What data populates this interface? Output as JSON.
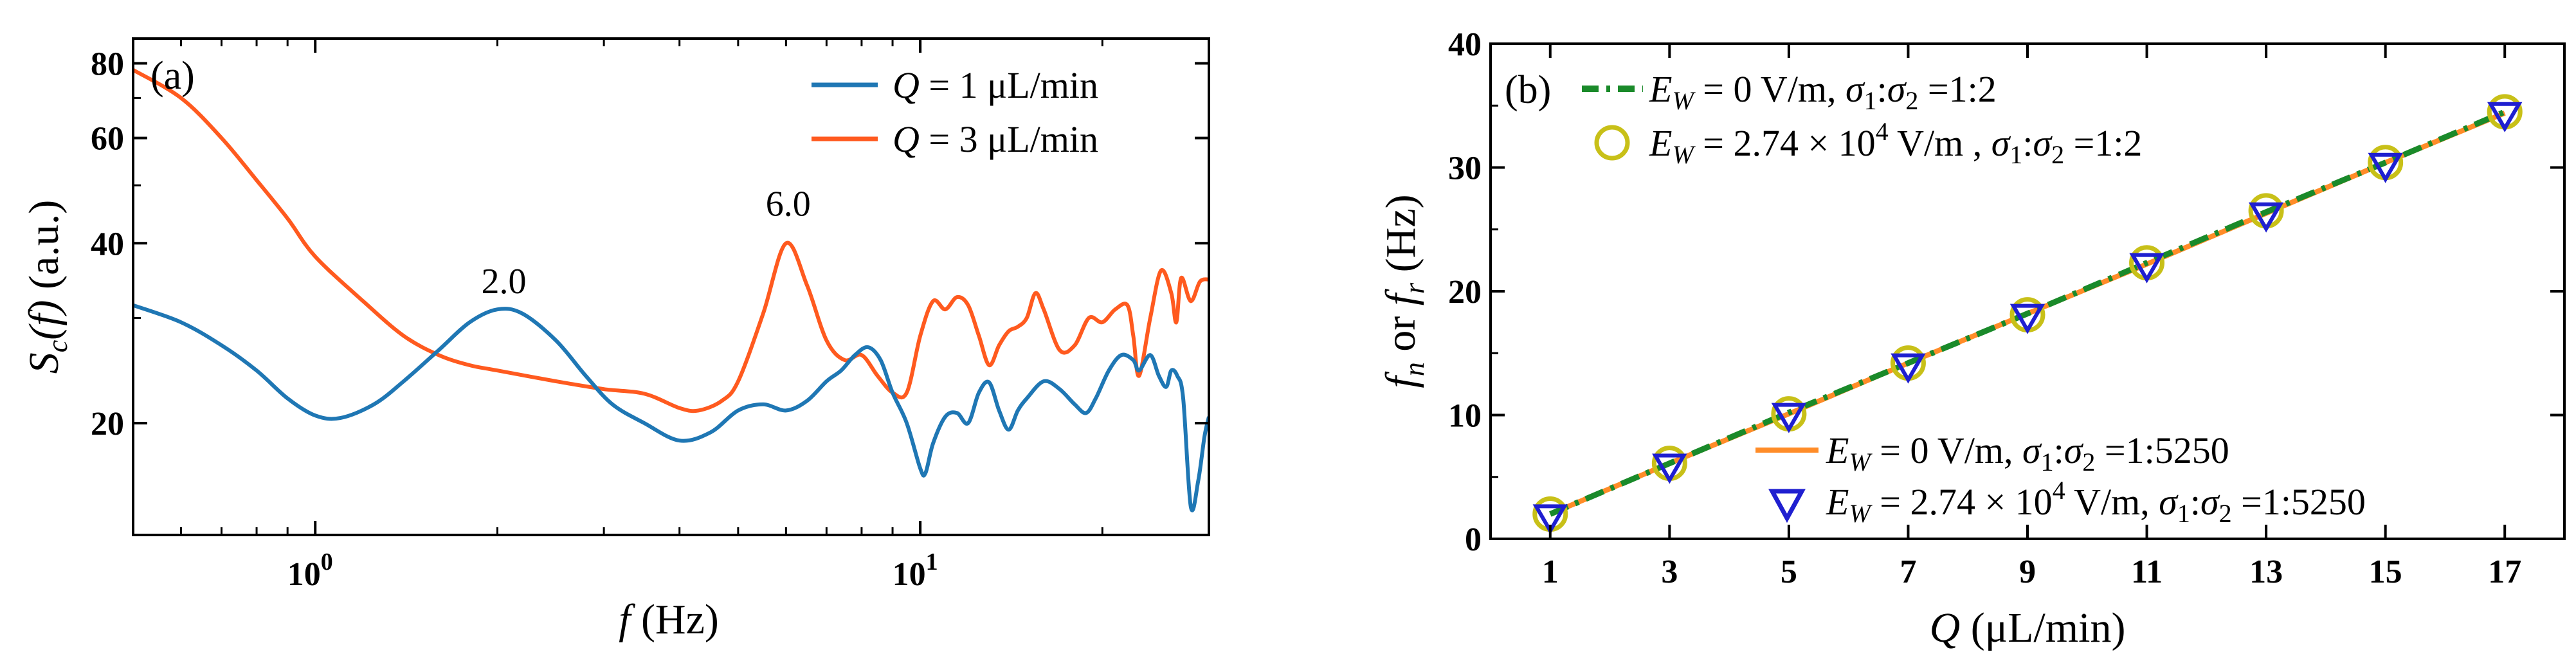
{
  "colors": {
    "blue": "#1f77b4",
    "orange": "#ff5a1f",
    "green": "#1a8a2a",
    "lineOrange": "#ff8c28",
    "olive": "#c8c018",
    "triangle": "#1f1fd0"
  },
  "chart_data": [
    {
      "id": "a",
      "type": "line",
      "panel_label": "(a)",
      "xscale": "log",
      "yscale": "log",
      "xlim": [
        0.5,
        30
      ],
      "ylim": [
        13,
        88
      ],
      "xlabel": {
        "italic": "f",
        "rest": "(Hz)"
      },
      "ylabel": {
        "italic": "S",
        "sub": "c",
        "arg": "(f)",
        "rest": "(a.u.)"
      },
      "xticks": [
        {
          "value": 1,
          "base": "10",
          "exp": "0"
        },
        {
          "value": 10,
          "base": "10",
          "exp": "1"
        }
      ],
      "yticks": [
        {
          "value": 20,
          "label": "20"
        },
        {
          "value": 40,
          "label": "40"
        },
        {
          "value": 60,
          "label": "60"
        },
        {
          "value": 80,
          "label": "80"
        }
      ],
      "legend_position": "top-right",
      "series": [
        {
          "name": "Q = 1 μL/min",
          "legend_var": "Q",
          "legend_rest": " = 1 μL/min",
          "color": "blue",
          "x": [
            0.5,
            0.6,
            0.7,
            0.8,
            0.9,
            1.0,
            1.1,
            1.25,
            1.4,
            1.6,
            1.8,
            2.0,
            2.2,
            2.5,
            2.8,
            3.1,
            3.5,
            4.0,
            4.5,
            5.0,
            5.5,
            6.0,
            6.5,
            7.0,
            7.4,
            7.8,
            8.2,
            8.6,
            9.0,
            9.5,
            10.0,
            10.2,
            10.5,
            11.0,
            11.5,
            12.0,
            12.5,
            13.0,
            13.5,
            14.0,
            14.5,
            15.0,
            16.0,
            17.0,
            18.0,
            18.8,
            19.5,
            20.5,
            21.5,
            22.5,
            23.0,
            24.0,
            24.8,
            25.5,
            26.0,
            26.6,
            27.2,
            28.0,
            28.8,
            29.5,
            30.0
          ],
          "y": [
            31.5,
            29.5,
            27.0,
            24.5,
            22.0,
            20.6,
            20.4,
            21.5,
            23.5,
            26.5,
            29.5,
            31.0,
            30.5,
            27.5,
            24.0,
            21.5,
            20.0,
            18.7,
            19.3,
            21.0,
            21.5,
            21.0,
            21.8,
            23.5,
            24.5,
            26.0,
            26.8,
            25.5,
            22.5,
            20.0,
            16.8,
            16.5,
            18.5,
            20.5,
            20.8,
            20.0,
            22.5,
            23.4,
            21.0,
            19.5,
            21.0,
            22.0,
            23.5,
            22.8,
            21.5,
            20.8,
            22.0,
            24.5,
            26.0,
            25.5,
            24.5,
            26.0,
            24.0,
            23.0,
            24.5,
            24.0,
            22.0,
            14.5,
            16.0,
            19.0,
            20.5
          ]
        },
        {
          "name": "Q = 3 μL/min",
          "legend_var": "Q",
          "legend_rest": " = 3 μL/min",
          "color": "orange",
          "x": [
            0.5,
            0.6,
            0.7,
            0.8,
            0.9,
            1.0,
            1.2,
            1.4,
            1.6,
            1.8,
            2.0,
            2.5,
            3.0,
            3.5,
            4.0,
            4.3,
            4.7,
            5.0,
            5.5,
            6.0,
            6.5,
            7.0,
            7.5,
            8.0,
            8.5,
            9.0,
            9.5,
            10.0,
            10.5,
            11.0,
            11.5,
            12.0,
            12.5,
            13.0,
            13.5,
            14.0,
            14.5,
            15.0,
            15.5,
            16.0,
            17.0,
            18.0,
            19.0,
            20.0,
            21.0,
            22.0,
            22.5,
            23.0,
            24.0,
            25.0,
            26.0,
            26.5,
            27.0,
            28.0,
            29.0,
            30.0
          ],
          "y": [
            78.0,
            70.0,
            60.0,
            51.0,
            44.0,
            38.0,
            32.0,
            28.0,
            26.0,
            25.0,
            24.5,
            23.5,
            22.8,
            22.4,
            21.2,
            21.0,
            21.8,
            23.5,
            30.5,
            40.0,
            34.0,
            27.5,
            25.5,
            26.0,
            24.0,
            22.5,
            22.5,
            28.0,
            32.0,
            31.0,
            32.5,
            31.5,
            28.0,
            25.0,
            27.0,
            28.5,
            29.0,
            30.0,
            33.0,
            31.0,
            26.5,
            27.0,
            30.0,
            29.5,
            31.0,
            31.5,
            28.0,
            24.0,
            30.0,
            36.0,
            33.0,
            29.5,
            35.0,
            32.0,
            34.5,
            34.8
          ]
        }
      ],
      "annotations": [
        {
          "text": "2.0",
          "x": 2.05,
          "y": 33.0
        },
        {
          "text": "6.0",
          "x": 6.05,
          "y": 44.5
        }
      ]
    },
    {
      "id": "b",
      "type": "line",
      "panel_label": "(b)",
      "xlim": [
        0,
        18
      ],
      "ylim": [
        0,
        40
      ],
      "xlabel": {
        "italic": "Q",
        "rest": "(μL/min)"
      },
      "ylabel": {
        "v1": "f",
        "s1": "n",
        "mid": " or ",
        "v2": "f",
        "s2": "r",
        "rest": "(Hz)"
      },
      "xticks": [
        1,
        3,
        5,
        7,
        9,
        11,
        13,
        15,
        17
      ],
      "yticks": [
        0,
        10,
        20,
        30,
        40
      ],
      "x": [
        1,
        3,
        5,
        7,
        9,
        11,
        13,
        15,
        17
      ],
      "series": [
        {
          "name": "E_W = 0 V/m, σ1:σ2 = 1:2",
          "style": "dash-dot line",
          "color": "green",
          "y": [
            2.0,
            6.1,
            10.2,
            14.2,
            18.2,
            22.3,
            26.4,
            30.4,
            34.5
          ],
          "legend": {
            "var": "E",
            "sub": "W",
            "mid": " = 0 V/m, ",
            "s1": "σ",
            "i1": "1",
            "s2": "σ",
            "i2": "2",
            "tail": " =1:2"
          }
        },
        {
          "name": "E_W = 2.74 × 10^4 V/m , σ1:σ2 = 1:2",
          "style": "circle markers",
          "color": "olive",
          "y": [
            2.0,
            6.1,
            10.1,
            14.2,
            18.1,
            22.3,
            26.5,
            30.4,
            34.5
          ],
          "legend": {
            "var": "E",
            "sub": "W",
            "mid": " = 2.74 × 10",
            "sup": "4",
            "mid2": " V/m , ",
            "s1": "σ",
            "i1": "1",
            "s2": "σ",
            "i2": "2",
            "tail": " =1:2"
          }
        },
        {
          "name": "E_W = 0 V/m, σ1:σ2 = 1:5250",
          "style": "solid line",
          "color": "lineOrange",
          "y": [
            2.0,
            6.1,
            10.1,
            14.2,
            18.2,
            22.2,
            26.3,
            30.4,
            34.4
          ],
          "legend": {
            "var": "E",
            "sub": "W",
            "mid": " = 0 V/m, ",
            "s1": "σ",
            "i1": "1",
            "s2": "σ",
            "i2": "2",
            "tail": " =1:5250"
          }
        },
        {
          "name": "E_W = 2.74 × 10^4 V/m, σ1:σ2 = 1:5250",
          "style": "triangle markers",
          "color": "triangle",
          "y": [
            1.9,
            6.0,
            10.1,
            14.1,
            18.1,
            22.2,
            26.3,
            30.3,
            34.4
          ],
          "legend": {
            "var": "E",
            "sub": "W",
            "mid": " = 2.74 × 10",
            "sup": "4",
            "mid2": " V/m, ",
            "s1": "σ",
            "i1": "1",
            "s2": "σ",
            "i2": "2",
            "tail": " =1:5250"
          }
        }
      ]
    }
  ]
}
